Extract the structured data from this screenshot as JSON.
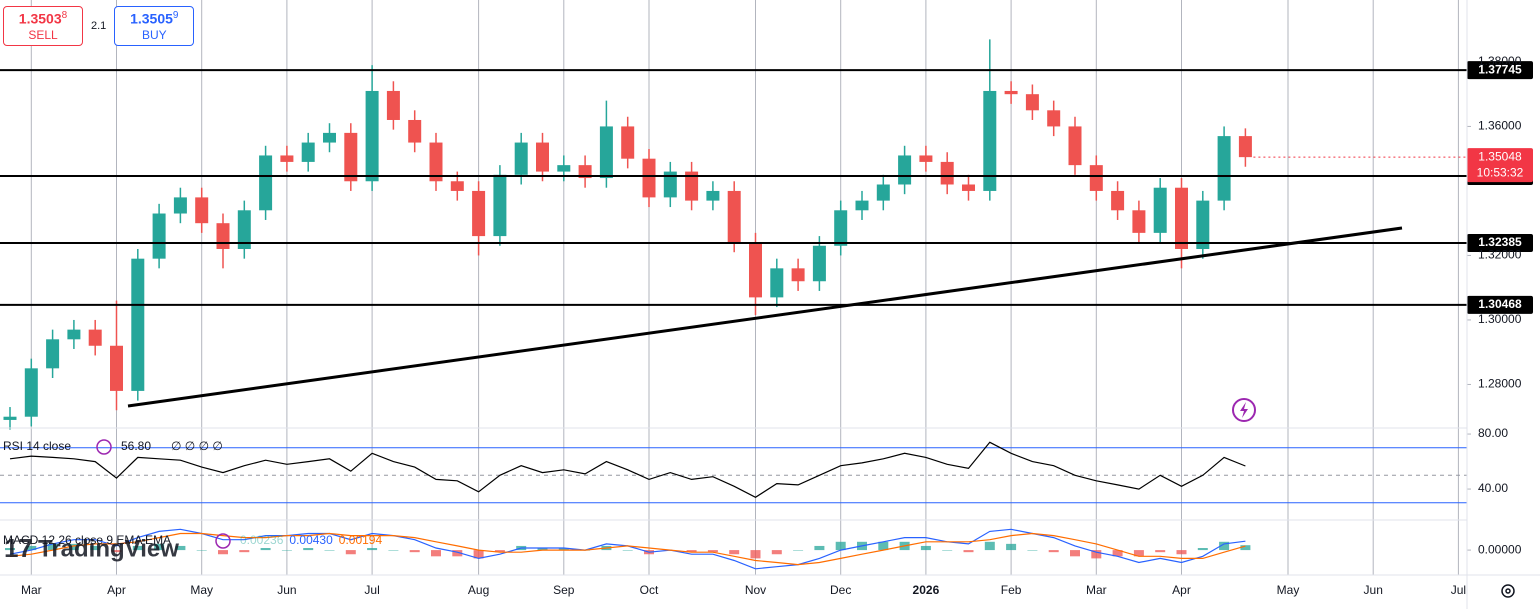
{
  "trade_panel": {
    "sell_price": "1.3503",
    "sell_pip": "8",
    "sell_label": "SELL",
    "spread": "2.1",
    "buy_price": "1.3505",
    "buy_pip": "9",
    "buy_label": "BUY"
  },
  "watermark": "TradingView",
  "chart_data": [
    {
      "type": "candlestick",
      "categories": [
        null,
        "Mar",
        null,
        null,
        null,
        "Apr",
        null,
        null,
        null,
        "May",
        null,
        null,
        null,
        "Jun",
        null,
        null,
        null,
        "Jul",
        null,
        null,
        null,
        null,
        "Aug",
        null,
        null,
        null,
        "Sep",
        null,
        null,
        null,
        "Oct",
        null,
        null,
        null,
        null,
        "Nov",
        null,
        null,
        null,
        "Dec",
        null,
        null,
        null,
        "2026",
        null,
        null,
        null,
        "Feb",
        null,
        null,
        null,
        "Mar",
        null,
        null,
        null,
        "Apr",
        null,
        null,
        null,
        null,
        "May",
        null,
        null,
        null,
        "Jun",
        null,
        null,
        null,
        "Jul"
      ],
      "open": [
        1.269,
        1.27,
        1.285,
        1.294,
        1.297,
        1.292,
        1.278,
        1.319,
        1.333,
        1.338,
        1.33,
        1.322,
        1.334,
        1.351,
        1.349,
        1.355,
        1.358,
        1.343,
        1.371,
        1.362,
        1.355,
        1.343,
        1.34,
        1.326,
        1.345,
        1.355,
        1.346,
        1.348,
        1.344,
        1.36,
        1.35,
        1.338,
        1.346,
        1.337,
        1.34,
        1.324,
        1.307,
        1.316,
        1.312,
        1.323,
        1.334,
        1.337,
        1.342,
        1.351,
        1.349,
        1.342,
        1.34,
        1.371,
        1.37,
        1.365,
        1.36,
        1.348,
        1.34,
        1.334,
        1.327,
        1.341,
        1.322,
        1.337,
        1.357,
        null,
        null,
        null,
        null,
        null,
        null,
        null,
        null,
        null,
        null
      ],
      "high": [
        1.273,
        1.288,
        1.297,
        1.3,
        1.3,
        1.306,
        1.322,
        1.336,
        1.341,
        1.341,
        1.333,
        1.337,
        1.354,
        1.354,
        1.358,
        1.361,
        1.361,
        1.379,
        1.374,
        1.365,
        1.358,
        1.346,
        1.343,
        1.348,
        1.358,
        1.358,
        1.351,
        1.351,
        1.368,
        1.363,
        1.353,
        1.349,
        1.349,
        1.343,
        1.343,
        1.327,
        1.319,
        1.319,
        1.326,
        1.337,
        1.34,
        1.345,
        1.354,
        1.354,
        1.352,
        1.345,
        1.387,
        1.374,
        1.373,
        1.368,
        1.363,
        1.351,
        1.343,
        1.337,
        1.344,
        1.344,
        1.34,
        1.36,
        1.3594,
        null,
        null,
        null,
        null,
        null,
        null,
        null,
        null,
        null,
        null
      ],
      "low": [
        1.266,
        1.267,
        1.282,
        1.291,
        1.289,
        1.272,
        1.275,
        1.316,
        1.33,
        1.327,
        1.316,
        1.319,
        1.331,
        1.346,
        1.346,
        1.352,
        1.34,
        1.34,
        1.359,
        1.352,
        1.34,
        1.337,
        1.32,
        1.323,
        1.342,
        1.343,
        1.343,
        1.341,
        1.341,
        1.347,
        1.335,
        1.335,
        1.334,
        1.334,
        1.321,
        1.3015,
        1.304,
        1.309,
        1.309,
        1.32,
        1.331,
        1.334,
        1.339,
        1.346,
        1.339,
        1.337,
        1.337,
        1.367,
        1.362,
        1.357,
        1.345,
        1.337,
        1.331,
        1.324,
        1.324,
        1.316,
        1.319,
        1.334,
        1.3475,
        null,
        null,
        null,
        null,
        null,
        null,
        null,
        null,
        null,
        null
      ],
      "close": [
        1.27,
        1.285,
        1.294,
        1.297,
        1.292,
        1.278,
        1.319,
        1.333,
        1.338,
        1.33,
        1.322,
        1.334,
        1.351,
        1.349,
        1.355,
        1.358,
        1.343,
        1.371,
        1.362,
        1.355,
        1.343,
        1.34,
        1.326,
        1.345,
        1.355,
        1.346,
        1.348,
        1.344,
        1.36,
        1.35,
        1.338,
        1.346,
        1.337,
        1.34,
        1.324,
        1.307,
        1.316,
        1.312,
        1.323,
        1.334,
        1.337,
        1.342,
        1.351,
        1.349,
        1.342,
        1.34,
        1.371,
        1.37,
        1.365,
        1.36,
        1.348,
        1.34,
        1.334,
        1.327,
        1.341,
        1.322,
        1.337,
        1.357,
        1.35048,
        null,
        null,
        null,
        null,
        null,
        null,
        null,
        null,
        null,
        null
      ],
      "up_color": "#26a69a",
      "down_color": "#ef5350",
      "ylim": [
        1.2665,
        1.3992
      ],
      "yticks": [
        {
          "value": 1.28,
          "label": "1.28000"
        },
        {
          "value": 1.3,
          "label": "1.30000"
        },
        {
          "value": 1.32,
          "label": "1.32000"
        },
        {
          "value": 1.36,
          "label": "1.36000"
        },
        {
          "value": 1.38,
          "label": "1.38000"
        }
      ],
      "levels": [
        1.37745,
        1.34462,
        1.32385,
        1.30468
      ],
      "countdown": "10:53:32",
      "grid": true
    },
    {
      "type": "line",
      "title": "RSI 14 close",
      "value_label": "56.80",
      "inputs": "∅ ∅ ∅ ∅",
      "series": [
        {
          "color": "#000000",
          "values": [
            62,
            64,
            63,
            62,
            60,
            48,
            63,
            62,
            61,
            56,
            52,
            57,
            61,
            58,
            60,
            62,
            53,
            66,
            60,
            56,
            47,
            46,
            38,
            50,
            57,
            52,
            54,
            51,
            60,
            54,
            47,
            52,
            47,
            49,
            42,
            34,
            44,
            43,
            50,
            57,
            59,
            62,
            66,
            63,
            58,
            55,
            74,
            66,
            60,
            57,
            50,
            46,
            43,
            40,
            50,
            42,
            50,
            63,
            56.8,
            null,
            null,
            null,
            null,
            null,
            null,
            null,
            null,
            null,
            null
          ]
        }
      ],
      "ylim": [
        17.5,
        84.4
      ],
      "yticks": [
        {
          "value": 40,
          "label": "40.00"
        },
        {
          "value": 80,
          "label": "80.00"
        }
      ],
      "bands": [
        30,
        70
      ],
      "midline": 50,
      "band_color": "#2962ff"
    },
    {
      "type": "macd",
      "title": "MACD 12 26 close 9 EMA EMA",
      "series": [
        {
          "type": "bar",
          "value_label": "0.00236",
          "up_color": "#26a69a",
          "down_color": "#ef5350",
          "values": [
            0.001,
            0.002,
            0.003,
            0.003,
            0.002,
            -0.001,
            0.002,
            0.003,
            0.002,
            0,
            -0.002,
            -0.001,
            0.001,
            0,
            0.001,
            0,
            -0.002,
            0.001,
            0,
            -0.001,
            -0.003,
            -0.003,
            -0.004,
            -0.001,
            0.002,
            0.001,
            0.001,
            0,
            0.002,
            0,
            -0.002,
            0,
            -0.001,
            -0.001,
            -0.002,
            -0.004,
            -0.002,
            0,
            0.002,
            0.004,
            0.004,
            0.004,
            0.004,
            0.002,
            0,
            -0.001,
            0.004,
            0.003,
            0,
            -0.001,
            -0.003,
            -0.004,
            -0.003,
            -0.003,
            -0.001,
            -0.002,
            0.001,
            0.004,
            0.00236,
            null,
            null,
            null,
            null,
            null,
            null,
            null,
            null,
            null,
            null
          ]
        },
        {
          "type": "line",
          "color": "#2962ff",
          "value_label": "0.00430",
          "values": [
            -0.002,
            0,
            0.003,
            0.005,
            0.005,
            0.002,
            0.006,
            0.009,
            0.01,
            0.008,
            0.005,
            0.005,
            0.007,
            0.007,
            0.008,
            0.008,
            0.005,
            0.008,
            0.007,
            0.005,
            0.001,
            -0.001,
            -0.004,
            -0.002,
            0.001,
            0.001,
            0.001,
            0,
            0.003,
            0.002,
            -0.001,
            0,
            -0.002,
            -0.002,
            -0.005,
            -0.009,
            -0.008,
            -0.007,
            -0.004,
            0,
            0.002,
            0.004,
            0.006,
            0.006,
            0.004,
            0.003,
            0.009,
            0.01,
            0.008,
            0.006,
            0.002,
            -0.001,
            -0.003,
            -0.006,
            -0.004,
            -0.006,
            -0.003,
            0.003,
            0.0043,
            null,
            null,
            null,
            null,
            null,
            null,
            null,
            null,
            null,
            null
          ]
        },
        {
          "type": "line",
          "color": "#ff6d00",
          "value_label": "0.00194",
          "values": [
            -0.003,
            -0.002,
            0,
            0.002,
            0.003,
            0.003,
            0.004,
            0.006,
            0.008,
            0.008,
            0.007,
            0.006,
            0.006,
            0.007,
            0.007,
            0.008,
            0.007,
            0.007,
            0.007,
            0.006,
            0.004,
            0.002,
            0,
            -0.001,
            -0.001,
            0,
            0,
            0,
            0.001,
            0.002,
            0.001,
            0,
            -0.001,
            -0.001,
            -0.003,
            -0.005,
            -0.006,
            -0.007,
            -0.006,
            -0.004,
            -0.002,
            0,
            0.002,
            0.004,
            0.004,
            0.004,
            0.005,
            0.007,
            0.008,
            0.007,
            0.005,
            0.003,
            0,
            -0.003,
            -0.003,
            -0.004,
            -0.004,
            -0.001,
            0.00194,
            null,
            null,
            null,
            null,
            null,
            null,
            null,
            null,
            null,
            null
          ]
        }
      ],
      "ylim": [
        -0.012,
        0.0145
      ],
      "yticks": [
        {
          "value": 0,
          "label": "0.00000"
        }
      ]
    }
  ]
}
